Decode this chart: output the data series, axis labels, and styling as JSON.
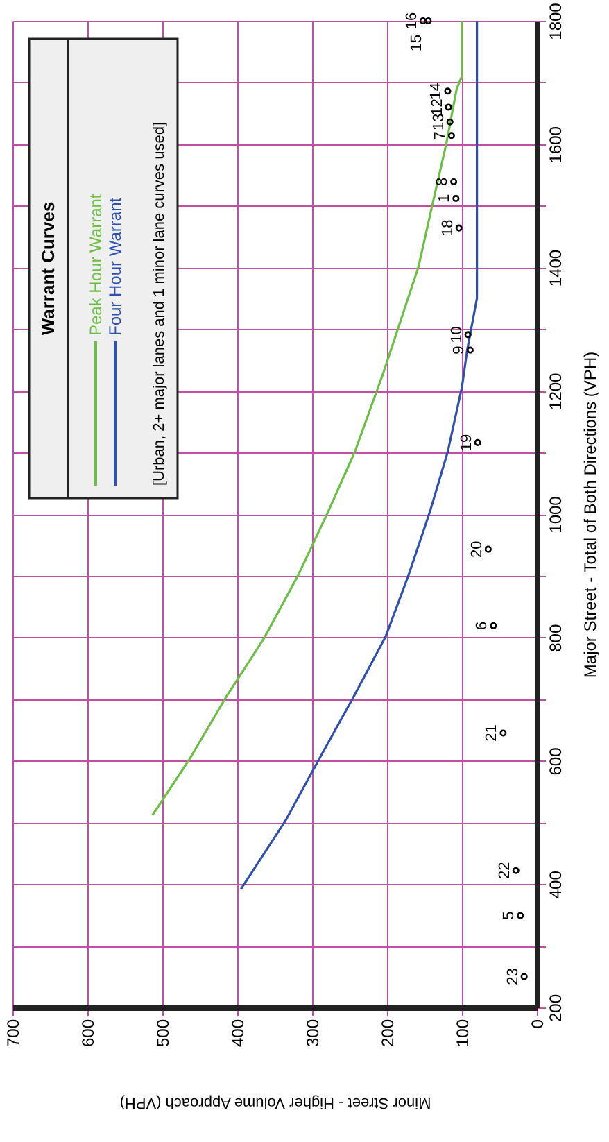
{
  "chart_data": {
    "type": "line",
    "xlabel": "Minor Street - Higher Volume Approach (VPH)",
    "ylabel": "Major Street - Total of Both Directions (VPH)",
    "legend_title": "Warrant Curves",
    "annotations": [
      "[Urban,  2+ major lanes and 1 minor lane curves used]",
      {
        "text": "23",
        "x": 17,
        "y": 250
      },
      {
        "text": "5",
        "x": 22,
        "y": 349
      },
      {
        "text": "22",
        "x": 28,
        "y": 422
      },
      {
        "text": "21",
        "x": 45,
        "y": 645
      },
      {
        "text": "6",
        "x": 58,
        "y": 819
      },
      {
        "text": "20",
        "x": 65,
        "y": 943
      },
      {
        "text": "19",
        "x": 79,
        "y": 1116
      },
      {
        "text": "9",
        "x": 89,
        "y": 1266
      },
      {
        "text": "10",
        "x": 92,
        "y": 1291
      },
      {
        "text": "18",
        "x": 104,
        "y": 1464
      },
      {
        "text": "1",
        "x": 108,
        "y": 1512
      },
      {
        "text": "8",
        "x": 111,
        "y": 1539
      },
      {
        "text": "7",
        "x": 114,
        "y": 1614
      },
      {
        "text": "13",
        "x": 116,
        "y": 1636
      },
      {
        "text": "12",
        "x": 118,
        "y": 1660
      },
      {
        "text": "14",
        "x": 119,
        "y": 1686
      },
      {
        "text": "16",
        "x": 152,
        "y": 1800
      },
      {
        "text": "15",
        "x": 145,
        "y": 1800
      }
    ],
    "xlim": [
      700,
      0
    ],
    "ylim": [
      200,
      1800
    ],
    "xticks": [
      700,
      600,
      500,
      400,
      300,
      200,
      100,
      0
    ],
    "yticks": [
      200,
      {
        "value": 300,
        "label": null
      },
      400,
      {
        "value": 500,
        "label": null
      },
      600,
      {
        "value": 700,
        "label": null
      },
      800,
      {
        "value": 900,
        "label": null
      },
      1000,
      {
        "value": 1100,
        "label": null
      },
      1200,
      {
        "value": 1300,
        "label": null
      },
      1400,
      {
        "value": 1500,
        "label": null
      },
      1600,
      {
        "value": 1700,
        "label": null
      },
      1800
    ],
    "grid": true,
    "legend": "top left",
    "series": [
      {
        "name": "Peak Hour Warrant",
        "color": "#6cbf45",
        "marker": "none",
        "x": [
          513,
          464,
          415,
          365,
          319,
          279,
          243,
          205,
          158,
          140,
          121,
          107,
          100,
          100
        ],
        "values": [
          512,
          602,
          703,
          797,
          900,
          1003,
          1101,
          1229,
          1401,
          1499,
          1600,
          1690,
          1710,
          1800
        ]
      },
      {
        "name": "Four Hour Warrant",
        "color": "#3050b0",
        "marker": "none",
        "x": [
          395,
          335,
          291,
          245,
          202,
          171,
          143,
          119,
          100,
          93,
          80,
          80
        ],
        "values": [
          392,
          504,
          602,
          703,
          801,
          902,
          1003,
          1101,
          1206,
          1266,
          1350,
          1800
        ]
      },
      {
        "color": "#000000",
        "type": "scatter",
        "marker": "circle",
        "x": [
          17,
          22,
          28,
          45,
          58,
          65,
          79,
          89,
          92,
          104,
          108,
          111,
          114,
          116,
          118,
          119,
          152,
          145
        ],
        "values": [
          250,
          349,
          422,
          645,
          819,
          943,
          1116,
          1266,
          1291,
          1464,
          1512,
          1539,
          1614,
          1636,
          1660,
          1686,
          1800,
          1800
        ]
      }
    ]
  }
}
